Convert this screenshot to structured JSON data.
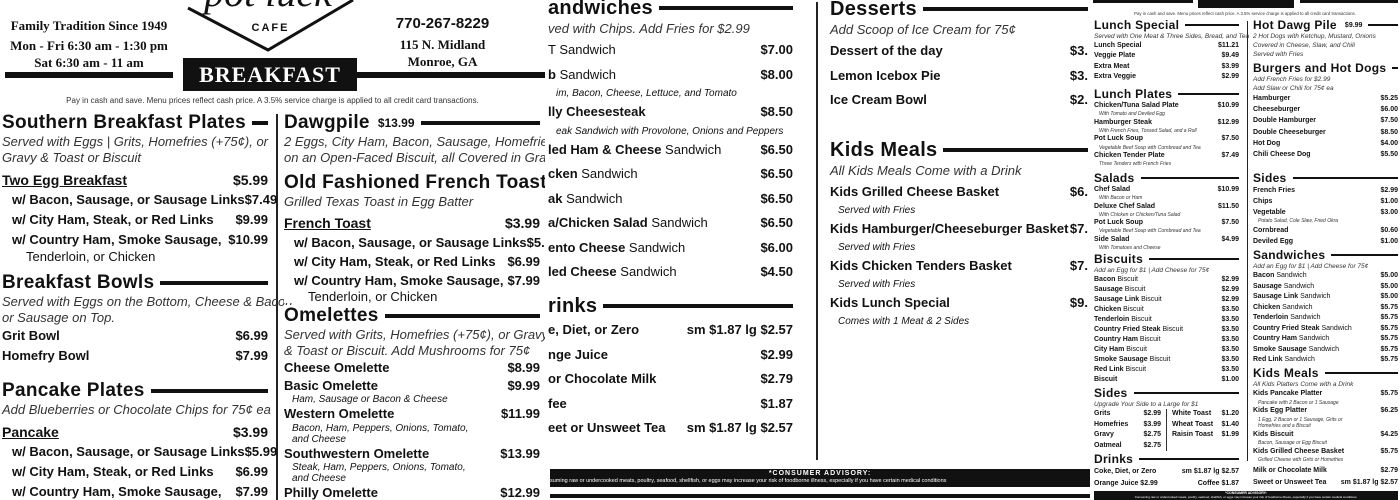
{
  "breakfast": {
    "tagline": "Family Tradition Since 1949",
    "hours_weekday": "Mon - Fri  6:30 am - 1:30 pm",
    "hours_sat": "Sat  6:30 am - 11 am",
    "logo_text": "Pot Luck",
    "logo_sub": "CAFE",
    "banner": "BREAKFAST",
    "phone": "770-267-8229",
    "address_line1": "115 N. Midland",
    "address_line2": "Monroe, GA",
    "pay_note": "Pay in cash and save. Menu prices reflect cash price. A 3.5% service charge is applied to all credit card transactions.",
    "col1": [
      {
        "title": "Southern Breakfast Plates",
        "notes": [
          "Served with Eggs | Grits, Homefries (+75¢), or",
          "Gravy & Toast or Biscuit"
        ],
        "items": [
          {
            "kind": "base",
            "name": "Two Egg Breakfast",
            "price": "$5.99"
          },
          {
            "kind": "option",
            "name": "w/ Bacon, Sausage, or Sausage Links",
            "price": "$7.49"
          },
          {
            "kind": "option",
            "name": "w/ City Ham, Steak, or Red Links",
            "price": "$9.99"
          },
          {
            "kind": "option",
            "name": "w/ Country Ham, Smoke Sausage,",
            "cont": "Tenderloin, or Chicken",
            "price": "$10.99"
          }
        ]
      },
      {
        "title": "Breakfast Bowls",
        "notes": [
          "Served with Eggs on the Bottom, Cheese & Bacon",
          "or Sausage on Top."
        ],
        "items": [
          {
            "name": "Grit Bowl",
            "price": "$6.99"
          },
          {
            "name": "Homefry Bowl",
            "price": "$7.99"
          }
        ]
      },
      {
        "title": "Pancake Plates",
        "notes": [
          "Add Blueberries or Chocolate Chips for 75¢ ea"
        ],
        "items": [
          {
            "kind": "base",
            "name": "Pancake",
            "price": "$3.99"
          },
          {
            "kind": "option",
            "name": "w/ Bacon, Sausage, or Sausage Links",
            "price": "$5.99"
          },
          {
            "kind": "option",
            "name": "w/ City Ham, Steak, or Red Links",
            "price": "$6.99"
          },
          {
            "kind": "option",
            "name": "w/ Country Ham, Smoke Sausage,",
            "cont": "Tenderloin, or Chicken",
            "price": "$7.99"
          }
        ]
      }
    ],
    "col2": [
      {
        "title": "Dawgpile",
        "price": "$13.99",
        "notes": [
          "2 Eggs, City Ham, Bacon, Sausage, Homefries",
          "on an Open-Faced Biscuit, all Covered in Gravy"
        ],
        "items": []
      },
      {
        "title": "Old Fashioned French Toast",
        "notes": [
          "Grilled Texas Toast in Egg Batter"
        ],
        "items": [
          {
            "kind": "base",
            "name": "French Toast",
            "price": "$3.99"
          },
          {
            "kind": "option",
            "name": "w/ Bacon, Sausage, or Sausage Links",
            "price": "$5.99"
          },
          {
            "kind": "option",
            "name": "w/ City Ham, Steak, or Red Links",
            "price": "$6.99"
          },
          {
            "kind": "option",
            "name": "w/ Country Ham, Smoke Sausage,",
            "cont": "Tenderloin, or Chicken",
            "price": "$7.99"
          }
        ]
      },
      {
        "title": "Omelettes",
        "notes": [
          "Served with Grits, Homefries (+75¢), or Gravy",
          "& Toast or Biscuit.     Add Mushrooms for 75¢"
        ],
        "items": [
          {
            "name": "Cheese Omelette",
            "price": "$8.99"
          },
          {
            "name": "Basic Omelette",
            "price": "$9.99",
            "desc": [
              "Ham, Sausage or Bacon & Cheese"
            ]
          },
          {
            "name": "Western Omelette",
            "price": "$11.99",
            "desc": [
              "Bacon, Ham, Peppers, Onions, Tomato,",
              "and Cheese"
            ]
          },
          {
            "name": "Southwestern Omelette",
            "price": "$13.99",
            "desc": [
              "Steak, Ham, Peppers, Onions, Tomato,",
              "and Cheese"
            ]
          },
          {
            "name": "Philly Omelette",
            "price": "$12.99",
            "desc": [
              "Steak, Provolone Cheese, Peppers and Onions"
            ]
          }
        ]
      }
    ]
  },
  "lunch_center": {
    "col1": [
      {
        "title": "andwiches",
        "notes": [
          "ved with Chips. Add Fries for $2.99"
        ],
        "items": [
          {
            "name": "",
            "suffix": "T Sandwich",
            "price": "$7.00"
          },
          {
            "name": "b",
            "suffix": " Sandwich",
            "price": "$8.00",
            "desc": [
              "im, Bacon, Cheese, Lettuce, and Tomato"
            ]
          },
          {
            "name": "lly Cheesesteak",
            "price": "$8.50",
            "desc": [
              "eak Sandwich with Provolone, Onions and Peppers"
            ]
          },
          {
            "name": "led Ham & Cheese",
            "suffix": " Sandwich",
            "price": "$6.50"
          },
          {
            "name": "cken",
            "suffix": " Sandwich",
            "price": "$6.50"
          },
          {
            "name": "ak",
            "suffix": " Sandwich",
            "price": "$6.50"
          },
          {
            "name": "a/Chicken Salad",
            "suffix": " Sandwich",
            "price": "$6.50"
          },
          {
            "name": "ento Cheese",
            "suffix": " Sandwich",
            "price": "$6.00"
          },
          {
            "name": "led Cheese",
            "suffix": " Sandwich",
            "price": "$4.50"
          }
        ]
      },
      {
        "title": "rinks",
        "notes": [],
        "items": [
          {
            "name": "e, Diet, or Zero",
            "price": "sm $1.87    lg $2.57"
          },
          {
            "name": "nge Juice",
            "price": "$2.99"
          },
          {
            "name": "or Chocolate Milk",
            "price": "$2.79"
          },
          {
            "name": "fee",
            "price": "$1.87"
          },
          {
            "name": "eet or Unsweet Tea",
            "price": "sm $1.87    lg $2.57"
          }
        ]
      }
    ],
    "col2": [
      {
        "title": "Desserts",
        "notes": [
          "Add Scoop of Ice Cream for 75¢"
        ],
        "items": [
          {
            "name": "Dessert of the day",
            "price": "$3."
          },
          {
            "name": "Lemon Icebox Pie",
            "price": "$3."
          },
          {
            "name": "Ice Cream Bowl",
            "price": "$2."
          }
        ]
      },
      {
        "title": "Kids Meals",
        "notes": [
          "All Kids Meals Come with a Drink"
        ],
        "items": [
          {
            "name": "Kids Grilled Cheese Basket",
            "price": "$6.",
            "desc": [
              "Served with Fries"
            ]
          },
          {
            "name": "Kids Hamburger/Cheeseburger Basket",
            "price": "$7.",
            "desc": [
              "Served with Fries"
            ]
          },
          {
            "name": "Kids Chicken Tenders Basket",
            "price": "$7.",
            "desc": [
              "Served with Fries"
            ]
          },
          {
            "name": "Kids Lunch Special",
            "price": "$9.",
            "desc": [
              "Comes with 1 Meat & 2 Sides"
            ]
          }
        ]
      }
    ],
    "advisory_title": "*CONSUMER ADVISORY:",
    "advisory_text": "suming raw or undercooked meats, poultry, seafood, shellfish, or eggs may increase your risk of foodborne illness, especially if you have certain medical conditions"
  },
  "lunch_right": {
    "banner": "LUNCH",
    "pay_note": "Pay in cash and save. Menu prices reflect cash price. A 3.5% service charge is applied to all credit card transactions.",
    "col1": [
      {
        "title": "Lunch Special",
        "notes": [
          "Served with One Meat & Three Sides, Bread, and Tea"
        ],
        "items": [
          {
            "name": "Lunch Special",
            "price": "$11.21"
          },
          {
            "name": "Veggie Plate",
            "price": "$9.49"
          },
          {
            "name": "Extra Meat",
            "price": "$3.99"
          },
          {
            "name": "Extra Veggie",
            "price": "$2.99"
          }
        ]
      },
      {
        "title": "Lunch Plates",
        "notes": [],
        "items": [
          {
            "name": "Chicken/Tuna Salad Plate",
            "price": "$10.99",
            "desc": [
              "With Tomato and Deviled Egg"
            ]
          },
          {
            "name": "Hamburger Steak",
            "price": "$12.99",
            "desc": [
              "With French Fries, Tossed Salad, and a Roll"
            ]
          },
          {
            "name": "Pot Luck Soup",
            "price": "$7.50",
            "desc": [
              "Vegetable Beef Soup with Cornbread and Tea"
            ]
          },
          {
            "name": "Chicken Tender Plate",
            "price": "$7.49",
            "desc": [
              "Three Tenders with French Fries"
            ]
          }
        ]
      },
      {
        "title": "Salads",
        "notes": [],
        "items": [
          {
            "name": "Chef Salad",
            "price": "$10.99",
            "desc": [
              "With Bacon or Ham"
            ]
          },
          {
            "name": "Deluxe Chef Salad",
            "price": "$11.50",
            "desc": [
              "With Chicken or Chicken/Tuna Salad"
            ]
          },
          {
            "name": "Pot Luck Soup",
            "price": "$7.50",
            "desc": [
              "Vegetable Beef Soup with Cornbread and Tea"
            ]
          },
          {
            "name": "Side Salad",
            "price": "$4.99",
            "desc": [
              "With Tomatoes and Cheese"
            ]
          }
        ]
      },
      {
        "title": "Biscuits",
        "notes": [
          "Add an Egg for $1  |  Add Cheese for 75¢"
        ],
        "items": [
          {
            "name": "Bacon",
            "suffix": " Biscuit",
            "price": "$2.99"
          },
          {
            "name": "Sausage",
            "suffix": " Biscuit",
            "price": "$2.99"
          },
          {
            "name": "Sausage Link",
            "suffix": " Biscuit",
            "price": "$2.99"
          },
          {
            "name": "Chicken",
            "suffix": " Biscuit",
            "price": "$3.50"
          },
          {
            "name": "Tenderloin",
            "suffix": " Biscuit",
            "price": "$3.50"
          },
          {
            "name": "Country Fried Steak",
            "suffix": " Biscuit",
            "price": "$3.50"
          },
          {
            "name": "Country Ham",
            "suffix": " Biscuit",
            "price": "$3.50"
          },
          {
            "name": "City Ham",
            "suffix": " Biscuit",
            "price": "$3.50"
          },
          {
            "name": "Smoke Sausage",
            "suffix": " Biscuit",
            "price": "$3.50"
          },
          {
            "name": "Red Link",
            "suffix": " Biscuit",
            "price": "$3.50"
          },
          {
            "name": "Biscuit",
            "price": "$1.00"
          }
        ]
      },
      {
        "title": "Sides",
        "notes": [
          "Upgrade Your Side to a Large for $1"
        ],
        "items": [
          {
            "name": "Grits",
            "price": "$2.99"
          },
          {
            "name": "Homefries",
            "price": "$3.99"
          },
          {
            "name": "Gravy",
            "price": "$2.75"
          },
          {
            "name": "Oatmeal",
            "price": "$2.75"
          }
        ],
        "items_right": [
          {
            "name": "White Toast",
            "price": "$1.20"
          },
          {
            "name": "Wheat Toast",
            "price": "$1.40"
          },
          {
            "name": "Raisin Toast",
            "price": "$1.99"
          }
        ]
      },
      {
        "title": "Drinks",
        "notes": [],
        "items": [
          {
            "name": "Coke, Diet, or Zero",
            "price": "sm $1.87   lg $2.57"
          },
          {
            "name": "Orange Juice  $2.99",
            "price": "Coffee $1.87"
          }
        ]
      }
    ],
    "col2": [
      {
        "title": "Hot Dawg Pile",
        "price": "$9.99",
        "notes": [
          "2 Hot Dogs with Ketchup, Mustard, Onions",
          "Covered in Cheese, Slaw, and Chili",
          "Served with Fries"
        ],
        "items": []
      },
      {
        "title": "Burgers and Hot Dogs",
        "notes": [
          "Add French Fries for $2.99",
          "Add Slaw or Chili for 75¢ ea"
        ],
        "items": [
          {
            "name": "Hamburger",
            "price": "$5.25"
          },
          {
            "name": "Cheeseburger",
            "price": "$6.00"
          },
          {
            "name": "Double Hamburger",
            "price": "$7.50"
          },
          {
            "name": "Double Cheeseburger",
            "price": "$8.50"
          },
          {
            "name": "Hot Dog",
            "price": "$4.00"
          },
          {
            "name": "Chili Cheese Dog",
            "price": "$5.50"
          }
        ]
      },
      {
        "title": "Sides",
        "notes": [],
        "items": [
          {
            "name": "French Fries",
            "price": "$2.99"
          },
          {
            "name": "Chips",
            "price": "$1.00"
          },
          {
            "name": "Vegetable",
            "price": "$3.00",
            "desc": [
              "Potato Salad, Cole Slaw, Fried Okra"
            ]
          },
          {
            "name": "Cornbread",
            "price": "$0.60"
          },
          {
            "name": "Deviled Egg",
            "price": "$1.00"
          }
        ]
      },
      {
        "title": "Sandwiches",
        "notes": [
          "Add an Egg for $1  |  Add Cheese for 75¢"
        ],
        "items": [
          {
            "name": "Bacon",
            "suffix": " Sandwich",
            "price": "$5.00"
          },
          {
            "name": "Sausage",
            "suffix": " Sandwich",
            "price": "$5.00"
          },
          {
            "name": "Sausage Link",
            "suffix": " Sandwich",
            "price": "$5.00"
          },
          {
            "name": "Chicken",
            "suffix": " Sandwich",
            "price": "$5.75"
          },
          {
            "name": "Tenderloin",
            "suffix": " Sandwich",
            "price": "$5.75"
          },
          {
            "name": "Country Fried Steak",
            "suffix": " Sandwich",
            "price": "$5.75"
          },
          {
            "name": "Country Ham",
            "suffix": " Sandwich",
            "price": "$5.75"
          },
          {
            "name": "Smoke Sausage",
            "suffix": " Sandwich",
            "price": "$5.75"
          },
          {
            "name": "Red Link",
            "suffix": " Sandwich",
            "price": "$5.75"
          }
        ]
      },
      {
        "title": "Kids Meals",
        "notes": [
          "All Kids Platters Come with a Drink"
        ],
        "items": [
          {
            "name": "Kids Pancake Platter",
            "price": "$5.75",
            "desc": [
              "Pancake with 2 Bacon or 1 Sausage"
            ]
          },
          {
            "name": "Kids Egg Platter",
            "price": "$6.25",
            "desc": [
              "1 Egg, 2 Bacon or 1 Sausage, Grits or",
              "Homefries and a Biscuit"
            ]
          },
          {
            "name": "Kids Biscuit",
            "price": "$4.25",
            "desc": [
              "Bacon, Sausage or Egg Biscuit"
            ]
          },
          {
            "name": "Kids Grilled Cheese Basket",
            "price": "$5.75",
            "desc": [
              "Grilled Cheese with Grits or Homefries"
            ]
          }
        ]
      },
      {
        "title": "",
        "notes": [],
        "items": [
          {
            "name": "Milk or Chocolate Milk",
            "price": "$2.79"
          },
          {
            "name": "Sweet or Unsweet Tea",
            "price": "sm $1.87   lg $2.57"
          }
        ]
      }
    ],
    "advisory_title": "*CONSUMER ADVISORY:",
    "advisory_text": "Consuming raw or undercooked meats, poultry, seafood, shellfish, or eggs may increase your risk of foodborne illness, especially if you have certain medical conditions."
  }
}
